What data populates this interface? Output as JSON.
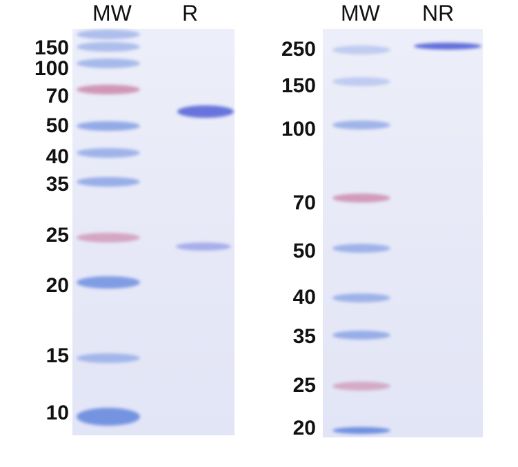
{
  "left_panel": {
    "lane_headers": [
      "MW",
      "R"
    ],
    "marker_labels": [
      "150",
      "100",
      "70",
      "50",
      "40",
      "35",
      "25",
      "20",
      "15",
      "10"
    ]
  },
  "right_panel": {
    "lane_headers": [
      "MW",
      "NR"
    ],
    "marker_labels": [
      "250",
      "150",
      "100",
      "70",
      "50",
      "40",
      "35",
      "25",
      "20"
    ]
  },
  "colors": {
    "marker_blue": "#6f8fe0",
    "marker_pink": "#c87aa0",
    "sample_band": "#5a68d8",
    "gel_background": "#e8eaf8"
  }
}
